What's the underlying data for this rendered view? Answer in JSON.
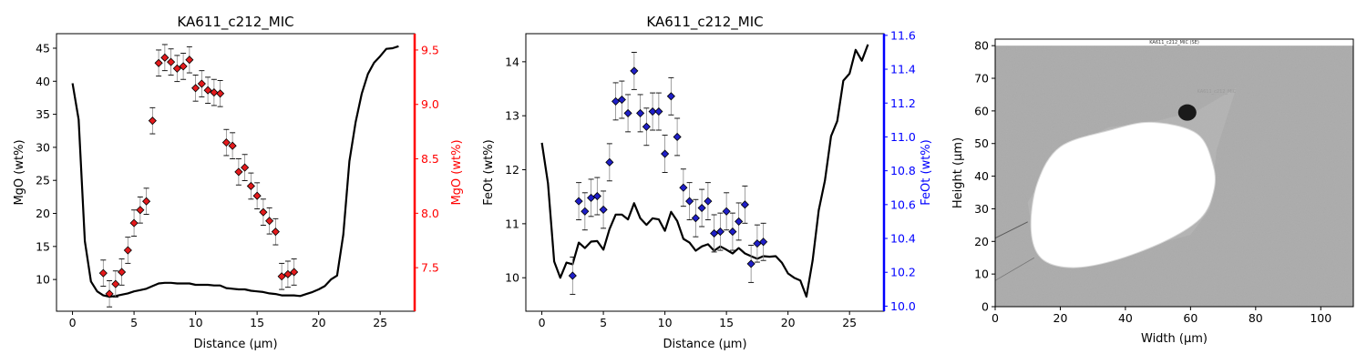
{
  "chart_data": [
    {
      "type": "line",
      "title": "KA611_c212_MIC",
      "xlabel": "Distance (µm)",
      "ylabel": "MgO (wt%)",
      "y2label": "MgO (wt%)",
      "y2color": "#ff0000",
      "xlim": [
        -1.3,
        27.8
      ],
      "ylim": [
        5.2,
        47.2
      ],
      "y2lim": [
        7.1,
        9.65
      ],
      "xticks": [
        0,
        5,
        10,
        15,
        20,
        25
      ],
      "yticks": [
        10,
        15,
        20,
        25,
        30,
        35,
        40,
        45
      ],
      "y2ticks": [
        7.5,
        8.0,
        8.5,
        9.0,
        9.5
      ],
      "y2ticklabels": [
        "7.5",
        "8.0",
        "8.5",
        "9.0",
        "9.5"
      ],
      "line_series": {
        "color": "#000000",
        "x": [
          0,
          0.5,
          1,
          1.5,
          2,
          2.5,
          3,
          3.5,
          4,
          4.5,
          5,
          5.5,
          6,
          6.5,
          7,
          7.5,
          8,
          8.5,
          9,
          9.5,
          10,
          10.5,
          11,
          11.5,
          12,
          12.5,
          13,
          13.5,
          14,
          14.5,
          15,
          15.5,
          16,
          16.5,
          17,
          17.5,
          18,
          18.5,
          19,
          19.5,
          20,
          20.5,
          21,
          21.5,
          22,
          22.5,
          23,
          23.5,
          24,
          24.5,
          25,
          25.5,
          26,
          26.5
        ],
        "y": [
          39.7,
          34.2,
          15.8,
          9.7,
          8.2,
          7.6,
          7.4,
          7.5,
          7.7,
          7.9,
          8.2,
          8.4,
          8.6,
          9.0,
          9.4,
          9.5,
          9.5,
          9.4,
          9.4,
          9.4,
          9.2,
          9.2,
          9.2,
          9.1,
          9.1,
          8.7,
          8.6,
          8.5,
          8.5,
          8.3,
          8.2,
          8.1,
          7.9,
          7.8,
          7.6,
          7.6,
          7.6,
          7.5,
          7.8,
          8.1,
          8.5,
          9.0,
          10.0,
          10.6,
          16.8,
          27.9,
          33.8,
          38.1,
          41.1,
          42.8,
          43.8,
          44.9,
          45.0,
          45.3
        ]
      },
      "scatter_series": {
        "color": "#e41a1c",
        "x": [
          2.5,
          3.0,
          3.5,
          4.0,
          4.5,
          5.0,
          5.5,
          6.0,
          6.5,
          7.0,
          7.5,
          8.0,
          8.5,
          9.0,
          9.5,
          10.0,
          10.5,
          11.0,
          11.5,
          12.0,
          12.5,
          13.0,
          13.5,
          14.0,
          14.5,
          15.0,
          15.5,
          16.0,
          16.5,
          17.0,
          17.5,
          18.0
        ],
        "y": [
          7.45,
          7.26,
          7.35,
          7.46,
          7.66,
          7.91,
          8.03,
          8.11,
          8.85,
          9.38,
          9.43,
          9.39,
          9.33,
          9.35,
          9.41,
          9.15,
          9.19,
          9.13,
          9.11,
          9.1,
          8.65,
          8.62,
          8.38,
          8.42,
          8.25,
          8.16,
          8.01,
          7.93,
          7.83,
          7.42,
          7.44,
          7.46
        ],
        "err": [
          0.12,
          0.12,
          0.12,
          0.12,
          0.12,
          0.12,
          0.12,
          0.12,
          0.12,
          0.12,
          0.12,
          0.12,
          0.12,
          0.12,
          0.12,
          0.12,
          0.12,
          0.12,
          0.12,
          0.12,
          0.12,
          0.12,
          0.12,
          0.12,
          0.12,
          0.12,
          0.12,
          0.12,
          0.12,
          0.12,
          0.12,
          0.12
        ]
      }
    },
    {
      "type": "line",
      "title": "KA611_c212_MIC",
      "xlabel": "Distance (µm)",
      "ylabel": "FeOt (wt%)",
      "y2label": "FeOt (wt%)",
      "y2color": "#0000ff",
      "xlim": [
        -1.3,
        27.8
      ],
      "ylim": [
        9.38,
        14.52
      ],
      "y2lim": [
        9.97,
        11.61
      ],
      "xticks": [
        0,
        5,
        10,
        15,
        20,
        25
      ],
      "yticks": [
        10,
        11,
        12,
        13,
        14
      ],
      "y2ticks": [
        10.0,
        10.2,
        10.4,
        10.6,
        10.8,
        11.0,
        11.2,
        11.4,
        11.6
      ],
      "y2ticklabels": [
        "10.0",
        "10.2",
        "10.4",
        "10.6",
        "10.8",
        "11.0",
        "11.2",
        "11.4",
        "11.6"
      ],
      "line_series": {
        "color": "#000000",
        "x": [
          0,
          0.5,
          1,
          1.5,
          2,
          2.5,
          3,
          3.5,
          4,
          4.5,
          5,
          5.5,
          6,
          6.5,
          7,
          7.5,
          8,
          8.5,
          9,
          9.5,
          10,
          10.5,
          11,
          11.5,
          12,
          12.5,
          13,
          13.5,
          14,
          14.5,
          15,
          15.5,
          16,
          16.5,
          17,
          17.5,
          18,
          18.5,
          19,
          19.5,
          20,
          20.5,
          21,
          21.5,
          22,
          22.5,
          23,
          23.5,
          24,
          24.5,
          25,
          25.5,
          26,
          26.5
        ],
        "y": [
          12.5,
          11.75,
          10.3,
          10.0,
          10.28,
          10.25,
          10.65,
          10.55,
          10.67,
          10.68,
          10.52,
          10.9,
          11.17,
          11.17,
          11.08,
          11.38,
          11.1,
          10.98,
          11.1,
          11.08,
          10.87,
          11.22,
          11.05,
          10.72,
          10.65,
          10.5,
          10.58,
          10.62,
          10.5,
          10.58,
          10.52,
          10.45,
          10.55,
          10.45,
          10.4,
          10.35,
          10.4,
          10.39,
          10.4,
          10.28,
          10.08,
          10.0,
          9.95,
          9.65,
          10.32,
          11.25,
          11.8,
          12.62,
          12.9,
          13.65,
          13.78,
          14.22,
          14.02,
          14.32
        ]
      },
      "scatter_series": {
        "color": "#1f1fc8",
        "x": [
          2.5,
          3.0,
          3.5,
          4.0,
          4.5,
          5.0,
          5.5,
          6.0,
          6.5,
          7.0,
          7.5,
          8.0,
          8.5,
          9.0,
          9.5,
          10.0,
          10.5,
          11.0,
          11.5,
          12.0,
          12.5,
          13.0,
          13.5,
          14.0,
          14.5,
          15.0,
          15.5,
          16.0,
          16.5,
          17.0,
          17.5,
          18.0
        ],
        "y": [
          10.18,
          10.62,
          10.56,
          10.64,
          10.65,
          10.57,
          10.85,
          11.21,
          11.22,
          11.14,
          11.39,
          11.14,
          11.06,
          11.15,
          11.15,
          10.9,
          11.24,
          11.0,
          10.7,
          10.62,
          10.52,
          10.58,
          10.62,
          10.43,
          10.44,
          10.56,
          10.44,
          10.5,
          10.6,
          10.25,
          10.37,
          10.38
        ],
        "err": [
          0.11,
          0.11,
          0.11,
          0.11,
          0.11,
          0.11,
          0.11,
          0.11,
          0.11,
          0.11,
          0.11,
          0.11,
          0.11,
          0.11,
          0.11,
          0.11,
          0.11,
          0.11,
          0.11,
          0.11,
          0.11,
          0.11,
          0.11,
          0.11,
          0.11,
          0.11,
          0.11,
          0.11,
          0.11,
          0.11,
          0.11,
          0.11
        ]
      }
    },
    {
      "type": "image",
      "xlabel": "Width (µm)",
      "ylabel": "Height (µm)",
      "xlim": [
        0,
        110
      ],
      "ylim": [
        0,
        82
      ],
      "xticks": [
        0,
        20,
        40,
        60,
        80,
        100
      ],
      "yticks": [
        0,
        10,
        20,
        30,
        40,
        50,
        60,
        70,
        80
      ],
      "image_header": "KA611_c212_MIC (SE)",
      "image_annotation": "KA611_c212_MIC"
    }
  ]
}
